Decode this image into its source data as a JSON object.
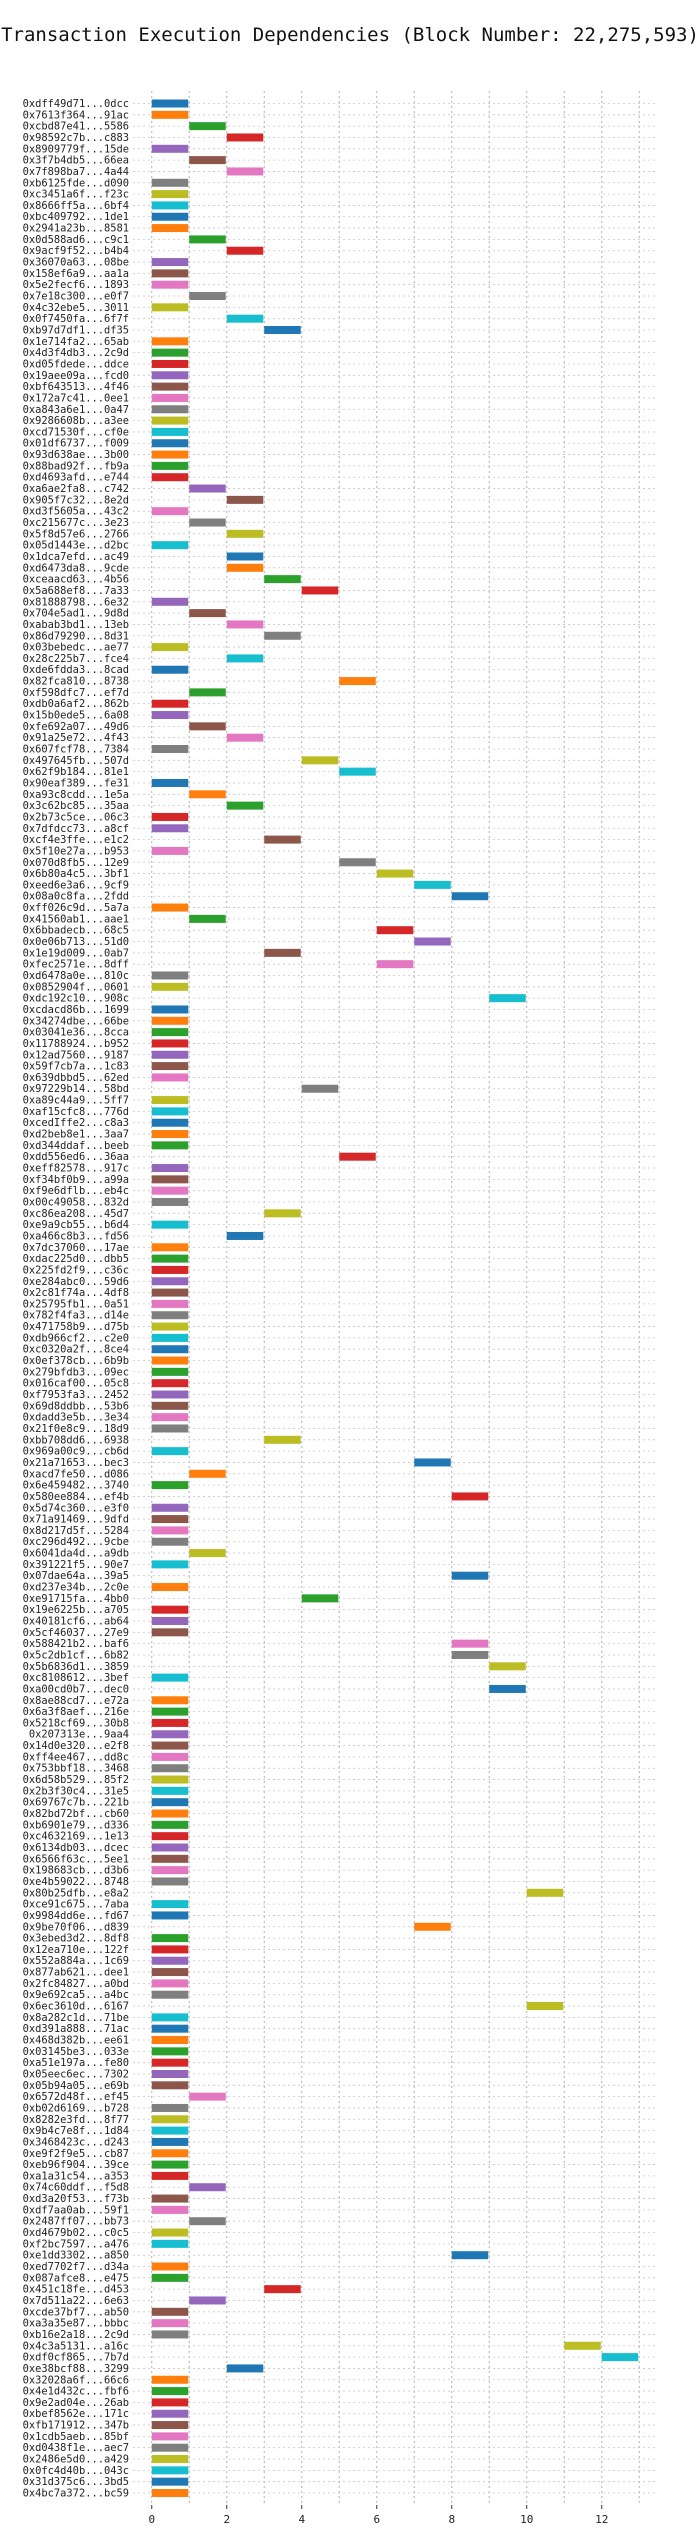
{
  "chart_data": {
    "type": "bar",
    "orientation": "horizontal",
    "title": "Transaction Execution Dependencies (Block Number: 22,275,593)",
    "xlabel": "",
    "ylabel": "",
    "xlim": [
      -0.5,
      13.5
    ],
    "x_ticks": [
      "0",
      "2",
      "4",
      "6",
      "8",
      "10",
      "12"
    ],
    "x_tick_values": [
      0,
      2,
      4,
      6,
      8,
      10,
      12
    ],
    "grid": "dotted",
    "legend": "none",
    "palette": [
      "#1f77b4",
      "#ff7f0e",
      "#2ca02c",
      "#d62728",
      "#9467bd",
      "#8c564b",
      "#e377c2",
      "#7f7f7f",
      "#bcbd22",
      "#17becf"
    ],
    "transactions": [
      {
        "label": "0xdff49d71...0dcc",
        "step": 0
      },
      {
        "label": "0x7613f364...91ac",
        "step": 0
      },
      {
        "label": "0xcbd87e41...5586",
        "step": 1
      },
      {
        "label": "0x98592c7b...c883",
        "step": 2
      },
      {
        "label": "0x8909779f...15de",
        "step": 0
      },
      {
        "label": "0x3f7b4db5...66ea",
        "step": 1
      },
      {
        "label": "0x7f898ba7...4a44",
        "step": 2
      },
      {
        "label": "0xb6125fde...d090",
        "step": 0
      },
      {
        "label": "0xc3451a6f...f23c",
        "step": 0
      },
      {
        "label": "0x8666ff5a...6bf4",
        "step": 0
      },
      {
        "label": "0xbc409792...1de1",
        "step": 0
      },
      {
        "label": "0x2941a23b...8581",
        "step": 0
      },
      {
        "label": "0x0d588ad6...c9c1",
        "step": 1
      },
      {
        "label": "0x9acf9f52...b4b4",
        "step": 2
      },
      {
        "label": "0x36070a63...08be",
        "step": 0
      },
      {
        "label": "0x158ef6a9...aa1a",
        "step": 0
      },
      {
        "label": "0x5e2fecf6...1893",
        "step": 0
      },
      {
        "label": "0x7e18c300...e0f7",
        "step": 1
      },
      {
        "label": "0x4c32ebe5...3011",
        "step": 0
      },
      {
        "label": "0x0f7450fa...6f7f",
        "step": 2
      },
      {
        "label": "0xb97d7df1...df35",
        "step": 3
      },
      {
        "label": "0x1e714fa2...65ab",
        "step": 0
      },
      {
        "label": "0x4d3f4db3...2c9d",
        "step": 0
      },
      {
        "label": "0xd05fdede...ddce",
        "step": 0
      },
      {
        "label": "0x19aee09a...fcd0",
        "step": 0
      },
      {
        "label": "0xbf643513...4f46",
        "step": 0
      },
      {
        "label": "0x172a7c41...0ee1",
        "step": 0
      },
      {
        "label": "0xa843a6e1...0a47",
        "step": 0
      },
      {
        "label": "0x9286608b...a3ee",
        "step": 0
      },
      {
        "label": "0xcd71530f...cf0e",
        "step": 0
      },
      {
        "label": "0x01df6737...f009",
        "step": 0
      },
      {
        "label": "0x93d638ae...3b00",
        "step": 0
      },
      {
        "label": "0x88bad92f...fb9a",
        "step": 0
      },
      {
        "label": "0xd4693afd...e744",
        "step": 0
      },
      {
        "label": "0xa6ae2fa8...c742",
        "step": 1
      },
      {
        "label": "0x905f7c32...8e2d",
        "step": 2
      },
      {
        "label": "0xd3f5605a...43c2",
        "step": 0
      },
      {
        "label": "0xc215677c...3e23",
        "step": 1
      },
      {
        "label": "0x5f8d57e6...2766",
        "step": 2
      },
      {
        "label": "0x05d1443e...d2bc",
        "step": 0
      },
      {
        "label": "0x1dca7efd...ac49",
        "step": 2
      },
      {
        "label": "0xd6473da8...9cde",
        "step": 2
      },
      {
        "label": "0xceaacd63...4b56",
        "step": 3
      },
      {
        "label": "0x5a688ef8...7a33",
        "step": 4
      },
      {
        "label": "0x81888798...6e32",
        "step": 0
      },
      {
        "label": "0x704e5ad1...9d8d",
        "step": 1
      },
      {
        "label": "0xabab3bd1...13eb",
        "step": 2
      },
      {
        "label": "0x86d79290...8d31",
        "step": 3
      },
      {
        "label": "0x03bebedc...ae77",
        "step": 0
      },
      {
        "label": "0x28c225b7...fce4",
        "step": 2
      },
      {
        "label": "0xde6fdda3...8cad",
        "step": 0
      },
      {
        "label": "0x82fca810...8738",
        "step": 5
      },
      {
        "label": "0xf598dfc7...ef7d",
        "step": 1
      },
      {
        "label": "0xdb0a6af2...862b",
        "step": 0
      },
      {
        "label": "0x15b0ede5...6a08",
        "step": 0
      },
      {
        "label": "0xfe692a07...49d6",
        "step": 1
      },
      {
        "label": "0x91a25e72...4f43",
        "step": 2
      },
      {
        "label": "0x607fcf78...7384",
        "step": 0
      },
      {
        "label": "0x497645fb...507d",
        "step": 4
      },
      {
        "label": "0x62f9b184...81e1",
        "step": 5
      },
      {
        "label": "0x90eaf389...fe31",
        "step": 0
      },
      {
        "label": "0xa93c8cdd...1e5a",
        "step": 1
      },
      {
        "label": "0x3c62bc85...35aa",
        "step": 2
      },
      {
        "label": "0x2b73c5ce...06c3",
        "step": 0
      },
      {
        "label": "0x7dfdcc73...a8cf",
        "step": 0
      },
      {
        "label": "0xcf4e3ffe...e1c2",
        "step": 3
      },
      {
        "label": "0x5f10e27a...b953",
        "step": 0
      },
      {
        "label": "0x070d8fb5...12e9",
        "step": 5
      },
      {
        "label": "0x6b80a4c5...3bf1",
        "step": 6
      },
      {
        "label": "0xeed6e3a6...9cf9",
        "step": 7
      },
      {
        "label": "0x08a0c8fa...2fdd",
        "step": 8
      },
      {
        "label": "0xff026c9d...5a7a",
        "step": 0
      },
      {
        "label": "0x41560ab1...aae1",
        "step": 1
      },
      {
        "label": "0x6bbadecb...68c5",
        "step": 6
      },
      {
        "label": "0x0e06b713...51d0",
        "step": 7
      },
      {
        "label": "0x1e19d009...0ab7",
        "step": 3
      },
      {
        "label": "0xfec2571e...8dff",
        "step": 6
      },
      {
        "label": "0xd6478a0e...810c",
        "step": 0
      },
      {
        "label": "0x0852904f...0601",
        "step": 0
      },
      {
        "label": "0xdc192c10...908c",
        "step": 9
      },
      {
        "label": "0xcdacd86b...1699",
        "step": 0
      },
      {
        "label": "0x34274dbe...66be",
        "step": 0
      },
      {
        "label": "0x03041e36...8cca",
        "step": 0
      },
      {
        "label": "0x11788924...b952",
        "step": 0
      },
      {
        "label": "0x12ad7560...9187",
        "step": 0
      },
      {
        "label": "0x59f7cb7a...1c83",
        "step": 0
      },
      {
        "label": "0x639dbbd5...62ed",
        "step": 0
      },
      {
        "label": "0x97229b14...58bd",
        "step": 4
      },
      {
        "label": "0xa89c44a9...5ff7",
        "step": 0
      },
      {
        "label": "0xaf15cfc8...776d",
        "step": 0
      },
      {
        "label": "0xcedIffe2...c8a3",
        "step": 0
      },
      {
        "label": "0xd2beb8e1...3aa7",
        "step": 0
      },
      {
        "label": "0xd344ddaf...beeb",
        "step": 0
      },
      {
        "label": "0xdd556ed6...36aa",
        "step": 5
      },
      {
        "label": "0xeff82578...917c",
        "step": 0
      },
      {
        "label": "0xf34bf0b9...a99a",
        "step": 0
      },
      {
        "label": "0xf9e6dflb...eb4c",
        "step": 0
      },
      {
        "label": "0x00c49058...832d",
        "step": 0
      },
      {
        "label": "0xc86ea208...45d7",
        "step": 3
      },
      {
        "label": "0xe9a9cb55...b6d4",
        "step": 0
      },
      {
        "label": "0xa466c8b3...fd56",
        "step": 2
      },
      {
        "label": "0x7dc37060...17ae",
        "step": 0
      },
      {
        "label": "0xdac225d0...dbb5",
        "step": 0
      },
      {
        "label": "0x225fd2f9...c36c",
        "step": 0
      },
      {
        "label": "0xe284abc0...59d6",
        "step": 0
      },
      {
        "label": "0x2c81f74a...4df8",
        "step": 0
      },
      {
        "label": "0x25795fb1...0a51",
        "step": 0
      },
      {
        "label": "0x782f4fa3...d14e",
        "step": 0
      },
      {
        "label": "0x471758b9...d75b",
        "step": 0
      },
      {
        "label": "0xdb966cf2...c2e0",
        "step": 0
      },
      {
        "label": "0xc0320a2f...8ce4",
        "step": 0
      },
      {
        "label": "0x0ef378cb...6b9b",
        "step": 0
      },
      {
        "label": "0x279bfdb3...09ec",
        "step": 0
      },
      {
        "label": "0x016caf00...05c8",
        "step": 0
      },
      {
        "label": "0xf7953fa3...2452",
        "step": 0
      },
      {
        "label": "0x69d8ddbb...53b6",
        "step": 0
      },
      {
        "label": "0xdadd3e5b...3e34",
        "step": 0
      },
      {
        "label": "0x21f0e8c9...18d9",
        "step": 0
      },
      {
        "label": "0xbb708dd6...6938",
        "step": 3
      },
      {
        "label": "0x969a00c9...cb6d",
        "step": 0
      },
      {
        "label": "0x21a71653...bec3",
        "step": 7
      },
      {
        "label": "0xacd7fe50...d086",
        "step": 1
      },
      {
        "label": "0x6e459482...3740",
        "step": 0
      },
      {
        "label": "0x580ee884...ef4b",
        "step": 8
      },
      {
        "label": "0x5d74c360...e3f0",
        "step": 0
      },
      {
        "label": "0x71a91469...9dfd",
        "step": 0
      },
      {
        "label": "0x8d217d5f...5284",
        "step": 0
      },
      {
        "label": "0xc296d492...9cbe",
        "step": 0
      },
      {
        "label": "0x6041da4d...a9db",
        "step": 1
      },
      {
        "label": "0x391221f5...90e7",
        "step": 0
      },
      {
        "label": "0x07dae64a...39a5",
        "step": 8
      },
      {
        "label": "0xd237e34b...2c0e",
        "step": 0
      },
      {
        "label": "0xe91715fa...4bb0",
        "step": 4
      },
      {
        "label": "0x19e6225b...a705",
        "step": 0
      },
      {
        "label": "0x40181cf6...ab64",
        "step": 0
      },
      {
        "label": "0x5cf46037...27e9",
        "step": 0
      },
      {
        "label": "0x588421b2...baf6",
        "step": 8
      },
      {
        "label": "0x5c2db1cf...6b82",
        "step": 8
      },
      {
        "label": "0x5b6836d1...3859",
        "step": 9
      },
      {
        "label": "0xc8108612...3bef",
        "step": 0
      },
      {
        "label": "0xa00cd0b7...dec0",
        "step": 9
      },
      {
        "label": "0x8ae88cd7...e72a",
        "step": 0
      },
      {
        "label": "0x6a3f8aef...216e",
        "step": 0
      },
      {
        "label": "0x5218cf69...30b8",
        "step": 0
      },
      {
        "label": "0x207313e...9aa4",
        "step": 0
      },
      {
        "label": "0x14d0e320...e2f8",
        "step": 0
      },
      {
        "label": "0xff4ee467...dd8c",
        "step": 0
      },
      {
        "label": "0x753bbf18...3468",
        "step": 0
      },
      {
        "label": "0x6d58b529...85f2",
        "step": 0
      },
      {
        "label": "0x2b3f30c4...31e5",
        "step": 0
      },
      {
        "label": "0x69767c7b...221b",
        "step": 0
      },
      {
        "label": "0x82bd72bf...cb60",
        "step": 0
      },
      {
        "label": "0xb6901e79...d336",
        "step": 0
      },
      {
        "label": "0xc4632169...1e13",
        "step": 0
      },
      {
        "label": "0x6134db03...dcec",
        "step": 0
      },
      {
        "label": "0x6566f63c...5ee1",
        "step": 0
      },
      {
        "label": "0x198683cb...d3b6",
        "step": 0
      },
      {
        "label": "0xe4b59022...8748",
        "step": 0
      },
      {
        "label": "0x80b25dfb...e8a2",
        "step": 10
      },
      {
        "label": "0xce91c675...7aba",
        "step": 0
      },
      {
        "label": "0x9984dd6e...fd67",
        "step": 0
      },
      {
        "label": "0x9be70f06...d839",
        "step": 7
      },
      {
        "label": "0x3ebed3d2...8df8",
        "step": 0
      },
      {
        "label": "0x12ea710e...122f",
        "step": 0
      },
      {
        "label": "0x552a884a...1c69",
        "step": 0
      },
      {
        "label": "0x877ab621...dee1",
        "step": 0
      },
      {
        "label": "0x2fc84827...a0bd",
        "step": 0
      },
      {
        "label": "0x9e692ca5...a4bc",
        "step": 0
      },
      {
        "label": "0x6ec3610d...6167",
        "step": 10
      },
      {
        "label": "0x8a282c1d...71be",
        "step": 0
      },
      {
        "label": "0xd391a888...71ac",
        "step": 0
      },
      {
        "label": "0x468d382b...ee61",
        "step": 0
      },
      {
        "label": "0x03145be3...033e",
        "step": 0
      },
      {
        "label": "0xa51e197a...fe80",
        "step": 0
      },
      {
        "label": "0x05eec6ec...7302",
        "step": 0
      },
      {
        "label": "0x05b94a05...e69b",
        "step": 0
      },
      {
        "label": "0x6572d48f...ef45",
        "step": 1
      },
      {
        "label": "0xb02d6169...b728",
        "step": 0
      },
      {
        "label": "0x8282e3fd...8f77",
        "step": 0
      },
      {
        "label": "0x9b4c7e8f...1d84",
        "step": 0
      },
      {
        "label": "0x3468423c...d243",
        "step": 0
      },
      {
        "label": "0xe9f2f9e5...cb87",
        "step": 0
      },
      {
        "label": "0xeb96f904...39ce",
        "step": 0
      },
      {
        "label": "0xa1a31c54...a353",
        "step": 0
      },
      {
        "label": "0x74c60ddf...f5d8",
        "step": 1
      },
      {
        "label": "0xd3a20f53...f73b",
        "step": 0
      },
      {
        "label": "0xdf7aa0ab...59f1",
        "step": 0
      },
      {
        "label": "0x2487ff07...bb73",
        "step": 1
      },
      {
        "label": "0xd4679b02...c0c5",
        "step": 0
      },
      {
        "label": "0xf2bc7597...a476",
        "step": 0
      },
      {
        "label": "0xe1dd3302...a850",
        "step": 8
      },
      {
        "label": "0xed7702f7...d34a",
        "step": 0
      },
      {
        "label": "0x087afce8...e475",
        "step": 0
      },
      {
        "label": "0x451c18fe...d453",
        "step": 3
      },
      {
        "label": "0x7d511a22...6e63",
        "step": 1
      },
      {
        "label": "0xcde37bf7...ab50",
        "step": 0
      },
      {
        "label": "0xa3a35e87...bbbc",
        "step": 0
      },
      {
        "label": "0xb16e2a18...2c9d",
        "step": 0
      },
      {
        "label": "0x4c3a5131...a16c",
        "step": 11
      },
      {
        "label": "0xdf0cf865...7b7d",
        "step": 12
      },
      {
        "label": "0xe38bcf88...3299",
        "step": 2
      },
      {
        "label": "0x32028a6f...66c6",
        "step": 0
      },
      {
        "label": "0x4e1d432c...fbf6",
        "step": 0
      },
      {
        "label": "0x9e2ad04e...26ab",
        "step": 0
      },
      {
        "label": "0xbef8562e...171c",
        "step": 0
      },
      {
        "label": "0xfb171912...347b",
        "step": 0
      },
      {
        "label": "0x1cdb5aeb...85bf",
        "step": 0
      },
      {
        "label": "0xd0438f1e...aec7",
        "step": 0
      },
      {
        "label": "0x2486e5d0...a429",
        "step": 0
      },
      {
        "label": "0x0fc4d40b...043c",
        "step": 0
      },
      {
        "label": "0x31d375c6...3bd5",
        "step": 0
      },
      {
        "label": "0x4bc7a372...bc59",
        "step": 0
      }
    ]
  }
}
